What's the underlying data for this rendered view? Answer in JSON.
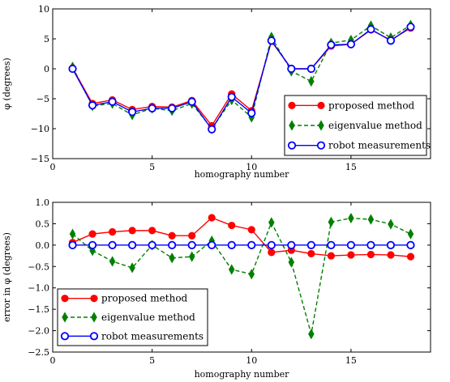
{
  "chart_data": [
    {
      "type": "line",
      "xlabel": "homography number",
      "ylabel": "φ (degrees)",
      "xlim": [
        0,
        19
      ],
      "ylim": [
        -15,
        10
      ],
      "xticks": [
        "0",
        "5",
        "10",
        "15"
      ],
      "yticks": [
        "10",
        "5",
        "0",
        "−5",
        "−10",
        "−15"
      ],
      "grid": false,
      "legend_position": "lower-right",
      "x": [
        1,
        2,
        3,
        4,
        5,
        6,
        7,
        8,
        9,
        10,
        11,
        12,
        13,
        14,
        15,
        16,
        17,
        18
      ],
      "series": [
        {
          "name": "proposed method",
          "color": "#ff0000",
          "marker": "circle",
          "linestyle": "solid",
          "values": [
            0.1,
            -5.8,
            -5.2,
            -6.8,
            -6.3,
            -6.4,
            -5.3,
            -9.5,
            -4.2,
            -7.0,
            4.6,
            0.0,
            0.0,
            3.8,
            4.1,
            6.5,
            4.8,
            6.8
          ]
        },
        {
          "name": "eigenvalue method",
          "color": "#008000",
          "marker": "diamond",
          "linestyle": "dashed",
          "values": [
            0.3,
            -6.2,
            -5.8,
            -7.7,
            -6.6,
            -7.0,
            -5.8,
            -10.0,
            -5.2,
            -8.1,
            5.3,
            -0.4,
            -2.1,
            4.3,
            4.8,
            7.2,
            5.2,
            7.3
          ]
        },
        {
          "name": "robot measurements",
          "color": "#0000ff",
          "marker": "ring",
          "linestyle": "solid",
          "values": [
            0.0,
            -6.1,
            -5.5,
            -7.2,
            -6.6,
            -6.6,
            -5.5,
            -10.1,
            -4.7,
            -7.4,
            4.7,
            0.0,
            0.0,
            4.0,
            4.1,
            6.6,
            4.7,
            7.0
          ]
        }
      ]
    },
    {
      "type": "line",
      "xlabel": "homography number",
      "ylabel": "error in φ (degrees)",
      "xlim": [
        0,
        19
      ],
      "ylim": [
        -2.5,
        1.0
      ],
      "xticks": [
        "0",
        "5",
        "10",
        "15"
      ],
      "yticks": [
        "1.0",
        "0.5",
        "0.0",
        "−0.5",
        "−1.0",
        "−1.5",
        "−2.0",
        "−2.5"
      ],
      "grid": false,
      "legend_position": "lower-left",
      "x": [
        1,
        2,
        3,
        4,
        5,
        6,
        7,
        8,
        9,
        10,
        11,
        12,
        13,
        14,
        15,
        16,
        17,
        18
      ],
      "series": [
        {
          "name": "proposed method",
          "color": "#ff0000",
          "marker": "circle",
          "linestyle": "solid",
          "values": [
            0.06,
            0.26,
            0.31,
            0.34,
            0.34,
            0.22,
            0.22,
            0.64,
            0.46,
            0.36,
            -0.17,
            -0.12,
            -0.2,
            -0.25,
            -0.23,
            -0.22,
            -0.23,
            -0.27
          ]
        },
        {
          "name": "eigenvalue method",
          "color": "#008000",
          "marker": "diamond",
          "linestyle": "dashed",
          "values": [
            0.26,
            -0.13,
            -0.38,
            -0.53,
            0.0,
            -0.3,
            -0.27,
            0.1,
            -0.57,
            -0.68,
            0.53,
            -0.4,
            -2.08,
            0.54,
            0.63,
            0.6,
            0.49,
            0.26
          ]
        },
        {
          "name": "robot measurements",
          "color": "#0000ff",
          "marker": "ring",
          "linestyle": "solid",
          "values": [
            0,
            0,
            0,
            0,
            0,
            0,
            0,
            0,
            0,
            0,
            0,
            0,
            0,
            0,
            0,
            0,
            0,
            0
          ]
        }
      ]
    }
  ]
}
